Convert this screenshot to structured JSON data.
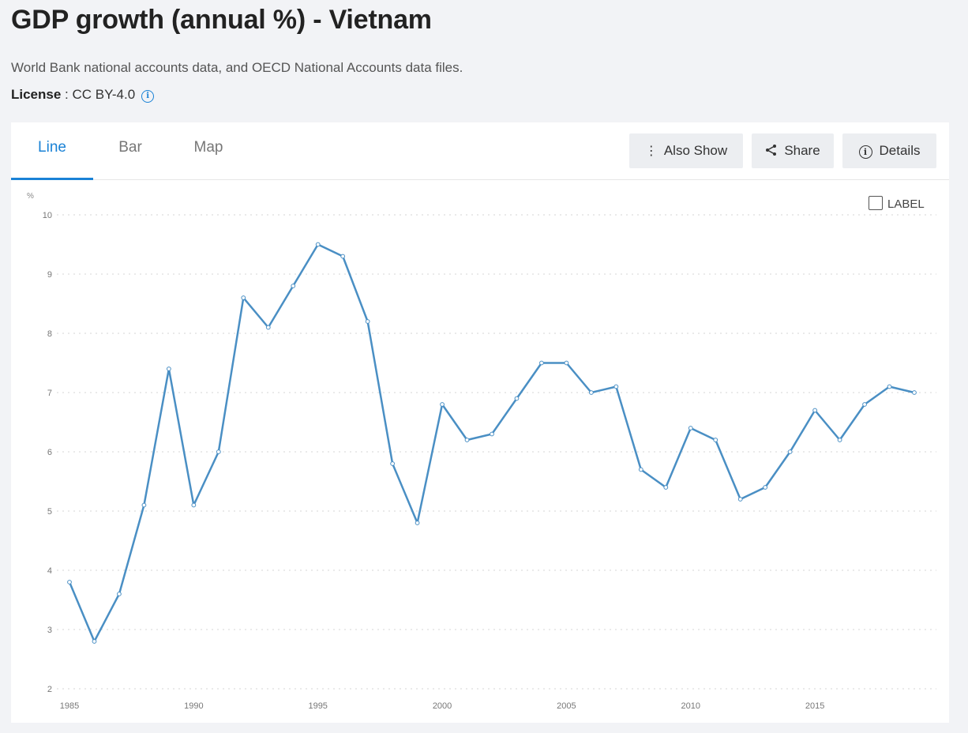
{
  "page": {
    "title": "GDP growth (annual %) - Vietnam",
    "source": "World Bank national accounts data, and OECD National Accounts data files.",
    "license_label": "License",
    "license_value": " : CC BY-4.0",
    "info_icon": "info-icon"
  },
  "tabs": [
    {
      "label": "Line",
      "active": true
    },
    {
      "label": "Bar",
      "active": false
    },
    {
      "label": "Map",
      "active": false
    }
  ],
  "toolbar": {
    "also_show": "Also Show",
    "share": "Share",
    "details": "Details"
  },
  "label_toggle": "LABEL",
  "chart_data": {
    "type": "line",
    "unit": "%",
    "x": [
      1985,
      1986,
      1987,
      1988,
      1989,
      1990,
      1991,
      1992,
      1993,
      1994,
      1995,
      1996,
      1997,
      1998,
      1999,
      2000,
      2001,
      2002,
      2003,
      2004,
      2005,
      2006,
      2007,
      2008,
      2009,
      2010,
      2011,
      2012,
      2013,
      2014,
      2015,
      2016,
      2017,
      2018,
      2019
    ],
    "series": [
      {
        "values": [
          3.8,
          2.8,
          3.6,
          5.1,
          7.4,
          5.1,
          6.0,
          8.6,
          8.1,
          8.8,
          9.5,
          9.3,
          8.2,
          5.8,
          4.8,
          6.8,
          6.2,
          6.3,
          6.9,
          7.5,
          7.5,
          7.0,
          7.1,
          5.7,
          5.4,
          6.4,
          6.2,
          5.2,
          5.4,
          6.0,
          6.7,
          6.2,
          6.8,
          7.1,
          7.0
        ],
        "color": "#4a8fc4"
      }
    ],
    "ylim": [
      2,
      10
    ],
    "yticks": [
      2,
      3,
      4,
      5,
      6,
      7,
      8,
      9,
      10
    ],
    "xticks": [
      1985,
      1990,
      1995,
      2000,
      2005,
      2010,
      2015
    ],
    "grid": true,
    "gridlines": "dotted-horizontal"
  }
}
